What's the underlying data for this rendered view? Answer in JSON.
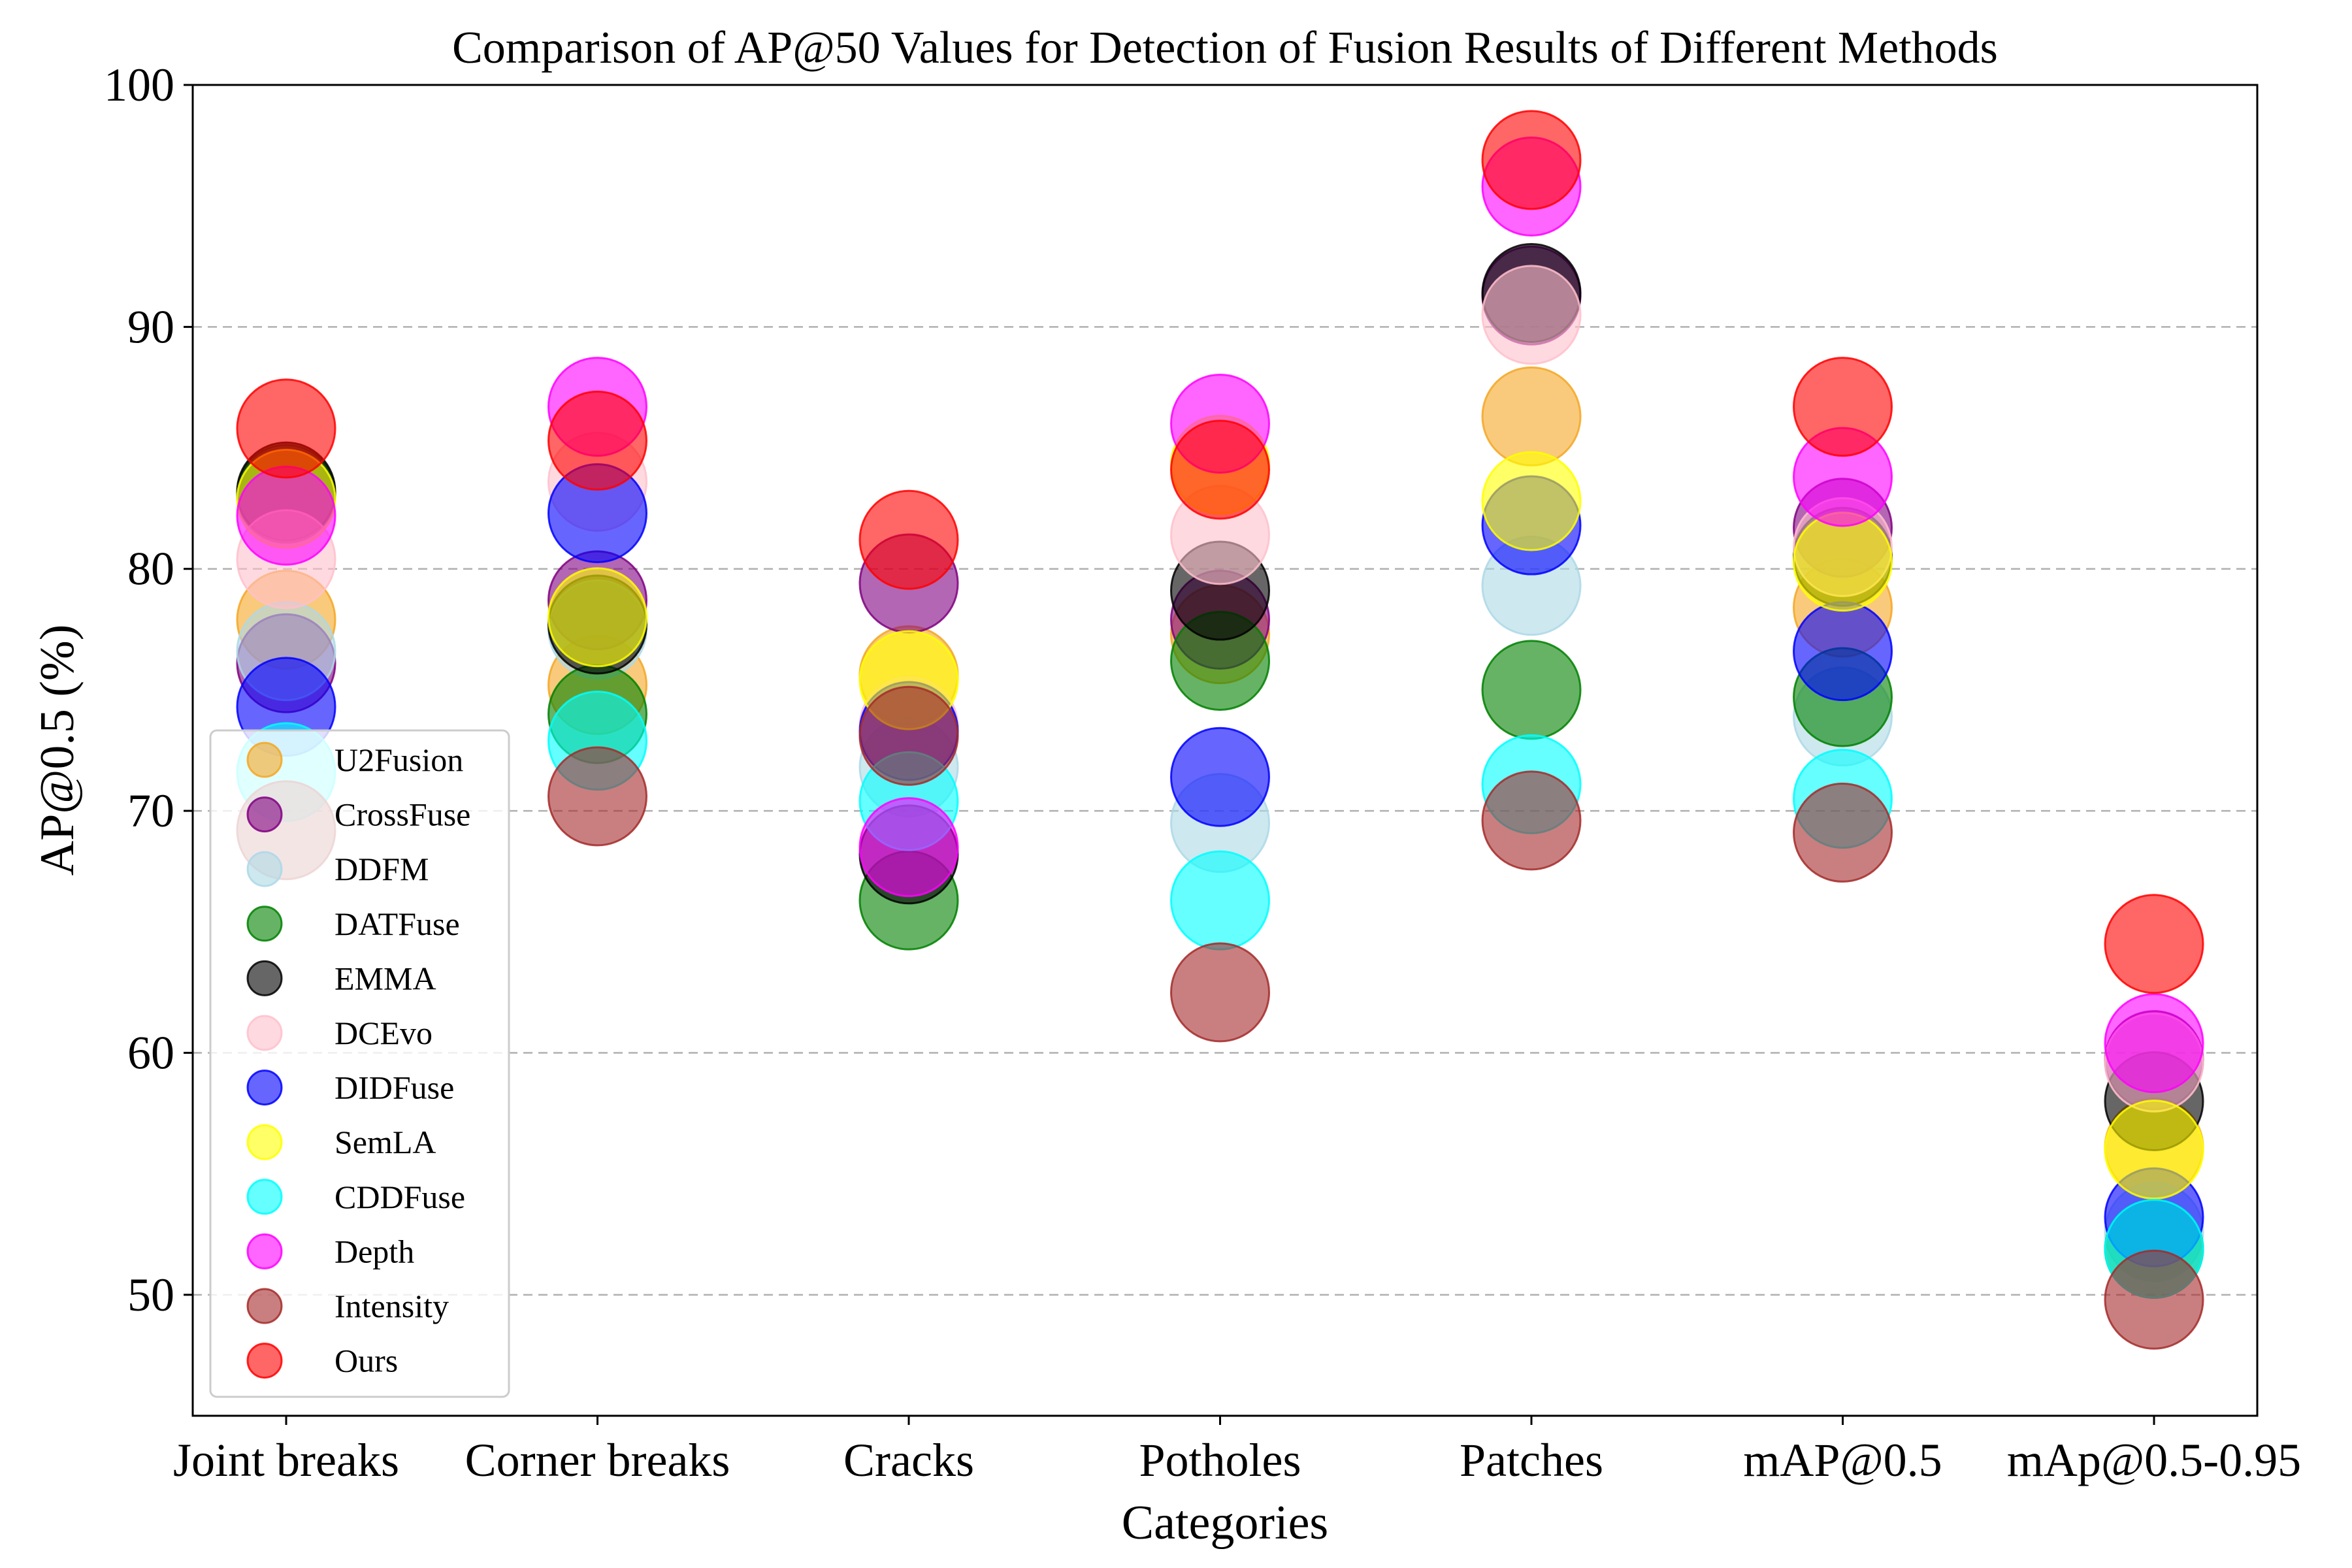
{
  "chart_data": {
    "type": "scatter",
    "title": "Comparison of AP@50 Values for Detection of Fusion Results of Different Methods",
    "xlabel": "Categories",
    "ylabel": "AP@0.5 (%)",
    "ylim": [
      45,
      100
    ],
    "yticks": [
      50,
      60,
      70,
      80,
      90,
      100
    ],
    "grid": "horizontal dashed",
    "legend_position": "lower-left",
    "categories": [
      "Joint breaks",
      "Corner breaks",
      "Cracks",
      "Potholes",
      "Patches",
      "mAP@0.5",
      "mAp@0.5-0.95"
    ],
    "series": [
      {
        "name": "U2Fusion",
        "color": "#f5a623",
        "values": [
          77.9,
          75.2,
          75.6,
          77.3,
          86.3,
          78.4,
          56.1
        ]
      },
      {
        "name": "CrossFuse",
        "color": "#800080",
        "values": [
          76.1,
          78.7,
          79.4,
          77.9,
          91.3,
          81.7,
          59.7
        ]
      },
      {
        "name": "DDFM",
        "color": "#add8e6",
        "values": [
          76.6,
          77.5,
          71.8,
          69.5,
          79.3,
          73.9,
          52.6
        ]
      },
      {
        "name": "DATFuse",
        "color": "#008000",
        "values": [
          83.1,
          74.0,
          66.3,
          76.2,
          75.0,
          74.7,
          51.9
        ]
      },
      {
        "name": "EMMA",
        "color": "#000000",
        "values": [
          83.2,
          77.7,
          68.2,
          79.1,
          91.4,
          80.5,
          58.0
        ]
      },
      {
        "name": "DCEvo",
        "color": "#ffc0cb",
        "values": [
          80.4,
          83.6,
          73.5,
          81.4,
          90.5,
          80.9,
          59.6
        ]
      },
      {
        "name": "DIDFuse",
        "color": "#0000ff",
        "values": [
          74.3,
          82.3,
          73.3,
          71.4,
          81.8,
          76.6,
          53.2
        ]
      },
      {
        "name": "SemLA",
        "color": "#ffff00",
        "values": [
          82.9,
          78.0,
          75.4,
          84.3,
          82.8,
          80.3,
          56.0
        ]
      },
      {
        "name": "CDDFuse",
        "color": "#00ffff",
        "values": [
          71.6,
          72.9,
          70.4,
          66.3,
          71.1,
          70.5,
          51.9
        ]
      },
      {
        "name": "Depth",
        "color": "#ff00ff",
        "values": [
          82.2,
          86.7,
          68.5,
          86.0,
          95.8,
          83.8,
          60.4
        ]
      },
      {
        "name": "Intensity",
        "color": "#a52a2a",
        "values": [
          69.2,
          70.6,
          73.1,
          62.5,
          69.6,
          69.1,
          49.8
        ]
      },
      {
        "name": "Ours",
        "color": "#ff0000",
        "values": [
          85.8,
          85.3,
          81.2,
          84.1,
          96.9,
          86.7,
          64.5
        ]
      }
    ]
  }
}
